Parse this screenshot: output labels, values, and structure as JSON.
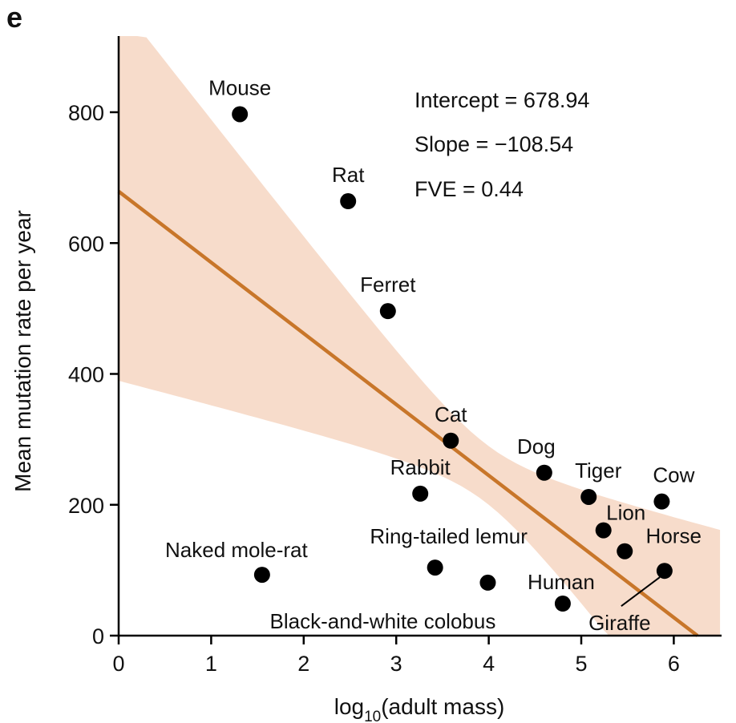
{
  "panel_label": "e",
  "chart_data": {
    "type": "scatter",
    "xlabel_main": "log",
    "xlabel_sub": "10",
    "xlabel_rest": "(adult mass)",
    "ylabel": "Mean mutation rate per year",
    "xlim": [
      0,
      6.5
    ],
    "ylim": [
      0,
      900
    ],
    "xticks": [
      0,
      1,
      2,
      3,
      4,
      5,
      6
    ],
    "yticks": [
      0,
      200,
      400,
      600,
      800
    ],
    "grid": false,
    "points": [
      {
        "label": "Mouse",
        "x": 1.31,
        "y": 797
      },
      {
        "label": "Rat",
        "x": 2.48,
        "y": 664
      },
      {
        "label": "Ferret",
        "x": 2.91,
        "y": 496
      },
      {
        "label": "Cat",
        "x": 3.59,
        "y": 298
      },
      {
        "label": "Dog",
        "x": 4.6,
        "y": 249
      },
      {
        "label": "Rabbit",
        "x": 3.26,
        "y": 217
      },
      {
        "label": "Tiger",
        "x": 5.08,
        "y": 212
      },
      {
        "label": "Cow",
        "x": 5.87,
        "y": 205
      },
      {
        "label": "Lion",
        "x": 5.24,
        "y": 161
      },
      {
        "label": "Horse",
        "x": 5.47,
        "y": 129
      },
      {
        "label": "Giraffe",
        "x": 5.9,
        "y": 99
      },
      {
        "label": "Naked mole-rat",
        "x": 1.55,
        "y": 93
      },
      {
        "label": "Ring-tailed lemur",
        "x": 3.42,
        "y": 104
      },
      {
        "label": "Black-and-white colobus",
        "x": 3.99,
        "y": 81
      },
      {
        "label": "Human",
        "x": 4.8,
        "y": 49
      }
    ],
    "fit": {
      "intercept": 678.94,
      "slope": -108.54
    },
    "annotations": [
      "Intercept = 678.94",
      "Slope = −108.54",
      "FVE = 0.44"
    ],
    "colors": {
      "fit_line": "#c8762a",
      "confidence_band": "#f7dccb",
      "points": "#000000"
    }
  }
}
